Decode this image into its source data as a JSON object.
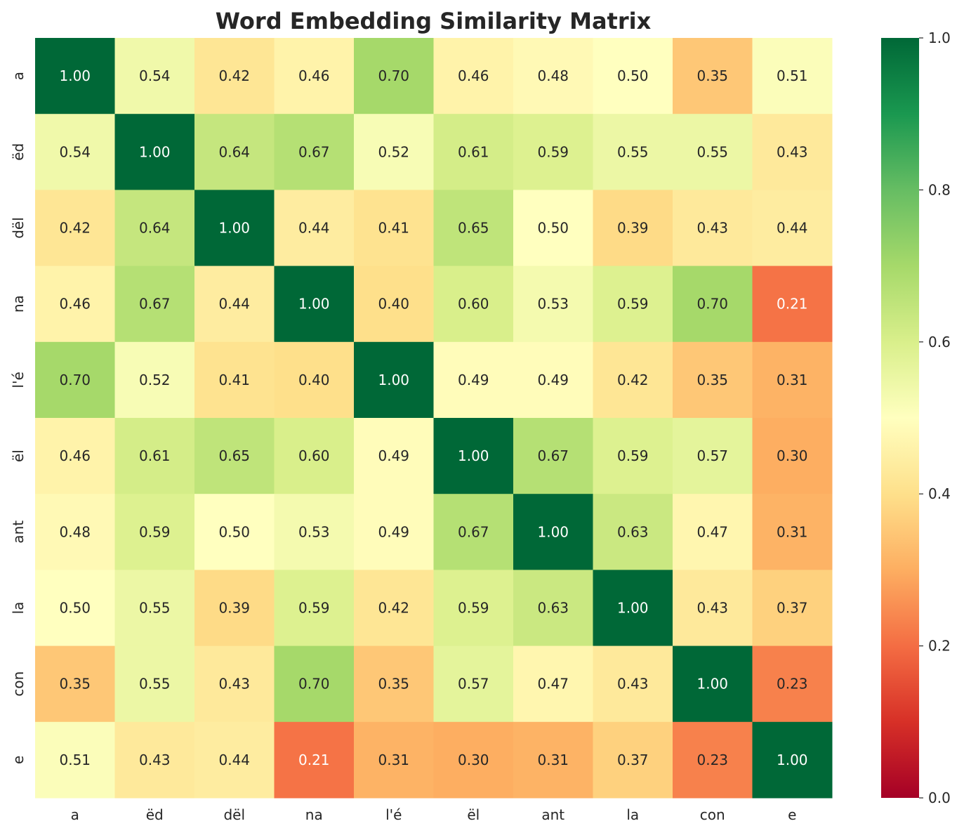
{
  "chart_data": {
    "type": "heatmap",
    "title": "Word Embedding Similarity Matrix",
    "row_labels": [
      "a",
      "ëd",
      "dël",
      "na",
      "l'é",
      "ël",
      "ant",
      "la",
      "con",
      "e"
    ],
    "col_labels": [
      "a",
      "ëd",
      "dël",
      "na",
      "l'é",
      "ël",
      "ant",
      "la",
      "con",
      "e"
    ],
    "values": [
      [
        1.0,
        0.54,
        0.42,
        0.46,
        0.7,
        0.46,
        0.48,
        0.5,
        0.35,
        0.51
      ],
      [
        0.54,
        1.0,
        0.64,
        0.67,
        0.52,
        0.61,
        0.59,
        0.55,
        0.55,
        0.43
      ],
      [
        0.42,
        0.64,
        1.0,
        0.44,
        0.41,
        0.65,
        0.5,
        0.39,
        0.43,
        0.44
      ],
      [
        0.46,
        0.67,
        0.44,
        1.0,
        0.4,
        0.6,
        0.53,
        0.59,
        0.7,
        0.21
      ],
      [
        0.7,
        0.52,
        0.41,
        0.4,
        1.0,
        0.49,
        0.49,
        0.42,
        0.35,
        0.31
      ],
      [
        0.46,
        0.61,
        0.65,
        0.6,
        0.49,
        1.0,
        0.67,
        0.59,
        0.57,
        0.3
      ],
      [
        0.48,
        0.59,
        0.5,
        0.53,
        0.49,
        0.67,
        1.0,
        0.63,
        0.47,
        0.31
      ],
      [
        0.5,
        0.55,
        0.39,
        0.59,
        0.42,
        0.59,
        0.63,
        1.0,
        0.43,
        0.37
      ],
      [
        0.35,
        0.55,
        0.43,
        0.7,
        0.35,
        0.57,
        0.47,
        0.43,
        1.0,
        0.23
      ],
      [
        0.51,
        0.43,
        0.44,
        0.21,
        0.31,
        0.3,
        0.31,
        0.37,
        0.23,
        1.0
      ]
    ],
    "value_format": "0.00",
    "colormap": "RdYlGn",
    "vmin": 0.0,
    "vmax": 1.0,
    "colorbar_ticks": [
      "0.0",
      "0.2",
      "0.4",
      "0.6",
      "0.8",
      "1.0"
    ],
    "colorbar_tick_values": [
      0.0,
      0.2,
      0.4,
      0.6,
      0.8,
      1.0
    ],
    "colorbar_position": "right",
    "grid": false
  }
}
